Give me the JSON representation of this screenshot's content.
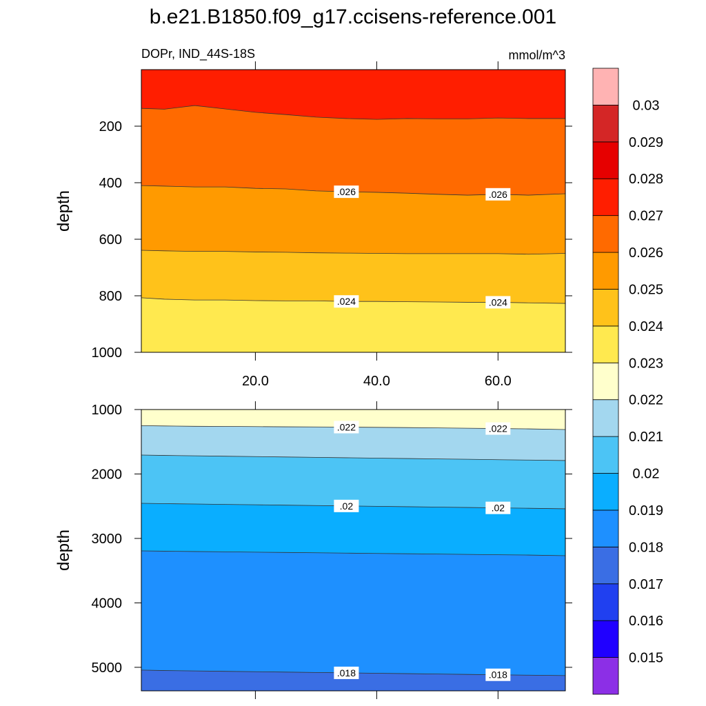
{
  "chart_data": {
    "type": "contour",
    "title": "b.e21.B1850.f09_g17.ccisens-reference.001",
    "subtitle": "DOPr, IND_44S-18S",
    "units": "mmol/m^3",
    "ylabel": "depth",
    "x": [
      1.2,
      5,
      10,
      15,
      20,
      25,
      30,
      35,
      40,
      45,
      50,
      55,
      60,
      65,
      71.1
    ],
    "xlim": [
      1.2,
      71.1
    ],
    "xticks": [
      {
        "value": 20,
        "label": "20.0"
      },
      {
        "value": 40,
        "label": "40.0"
      },
      {
        "value": 60,
        "label": "60.0"
      }
    ],
    "colorbar": {
      "levels": [
        0.015,
        0.016,
        0.017,
        0.018,
        0.019,
        0.02,
        0.021,
        0.022,
        0.023,
        0.024,
        0.025,
        0.026,
        0.027,
        0.028,
        0.029,
        0.03
      ],
      "colors": [
        "#8c2fe6",
        "#2000ff",
        "#2040f0",
        "#3a6ee4",
        "#1e90ff",
        "#0aaeff",
        "#4cc4f5",
        "#a3d7ef",
        "#ffffcc",
        "#ffe94f",
        "#ffc21a",
        "#ff9a00",
        "#ff6a00",
        "#ff1e00",
        "#e60000",
        "#d42626",
        "#ffb3b3"
      ]
    },
    "panels": [
      {
        "ylim": [
          0,
          1000
        ],
        "yticks": [
          200,
          400,
          600,
          800,
          1000
        ],
        "contours": [
          {
            "level": 0.027,
            "depth": [
              137,
              140,
              127,
              139,
              151,
              159,
              168,
              173,
              176,
              173,
              174,
              174,
              171,
              173,
              173
            ]
          },
          {
            "level": 0.026,
            "label": ".026",
            "depth": [
              410,
              412,
              415,
              415,
              420,
              422,
              429,
              432,
              434,
              437,
              441,
              444,
              441,
              444,
              439
            ]
          },
          {
            "level": 0.025,
            "depth": [
              639,
              641,
              643,
              643,
              645,
              646,
              648,
              649,
              650,
              651,
              651,
              651,
              651,
              653,
              650
            ]
          },
          {
            "level": 0.024,
            "label": ".024",
            "depth": [
              807,
              812,
              815,
              815,
              817,
              818,
              818,
              820,
              820,
              821,
              822,
              823,
              823,
              825,
              827
            ]
          }
        ]
      },
      {
        "ylim": [
          1000,
          5365
        ],
        "yticks": [
          1000,
          2000,
          3000,
          4000,
          5000
        ],
        "contours": [
          {
            "level": 0.022,
            "label": ".022",
            "depth": [
              1250,
              1255,
              1260,
              1262,
              1265,
              1268,
              1270,
              1273,
              1276,
              1280,
              1285,
              1290,
              1295,
              1300,
              1310
            ]
          },
          {
            "level": 0.021,
            "depth": [
              1706,
              1712,
              1718,
              1724,
              1730,
              1736,
              1742,
              1748,
              1754,
              1760,
              1766,
              1772,
              1778,
              1784,
              1791
            ]
          },
          {
            "level": 0.02,
            "label": ".02",
            "depth": [
              2455,
              2460,
              2466,
              2472,
              2478,
              2484,
              2490,
              2496,
              2502,
              2508,
              2514,
              2520,
              2526,
              2532,
              2540
            ]
          },
          {
            "level": 0.019,
            "depth": [
              3193,
              3198,
              3203,
              3208,
              3213,
              3218,
              3223,
              3228,
              3233,
              3238,
              3243,
              3248,
              3253,
              3258,
              3268
            ]
          },
          {
            "level": 0.018,
            "label": ".018",
            "depth": [
              5043,
              5050,
              5056,
              5062,
              5068,
              5074,
              5080,
              5086,
              5092,
              5098,
              5104,
              5110,
              5116,
              5122,
              5128
            ]
          }
        ]
      }
    ]
  }
}
